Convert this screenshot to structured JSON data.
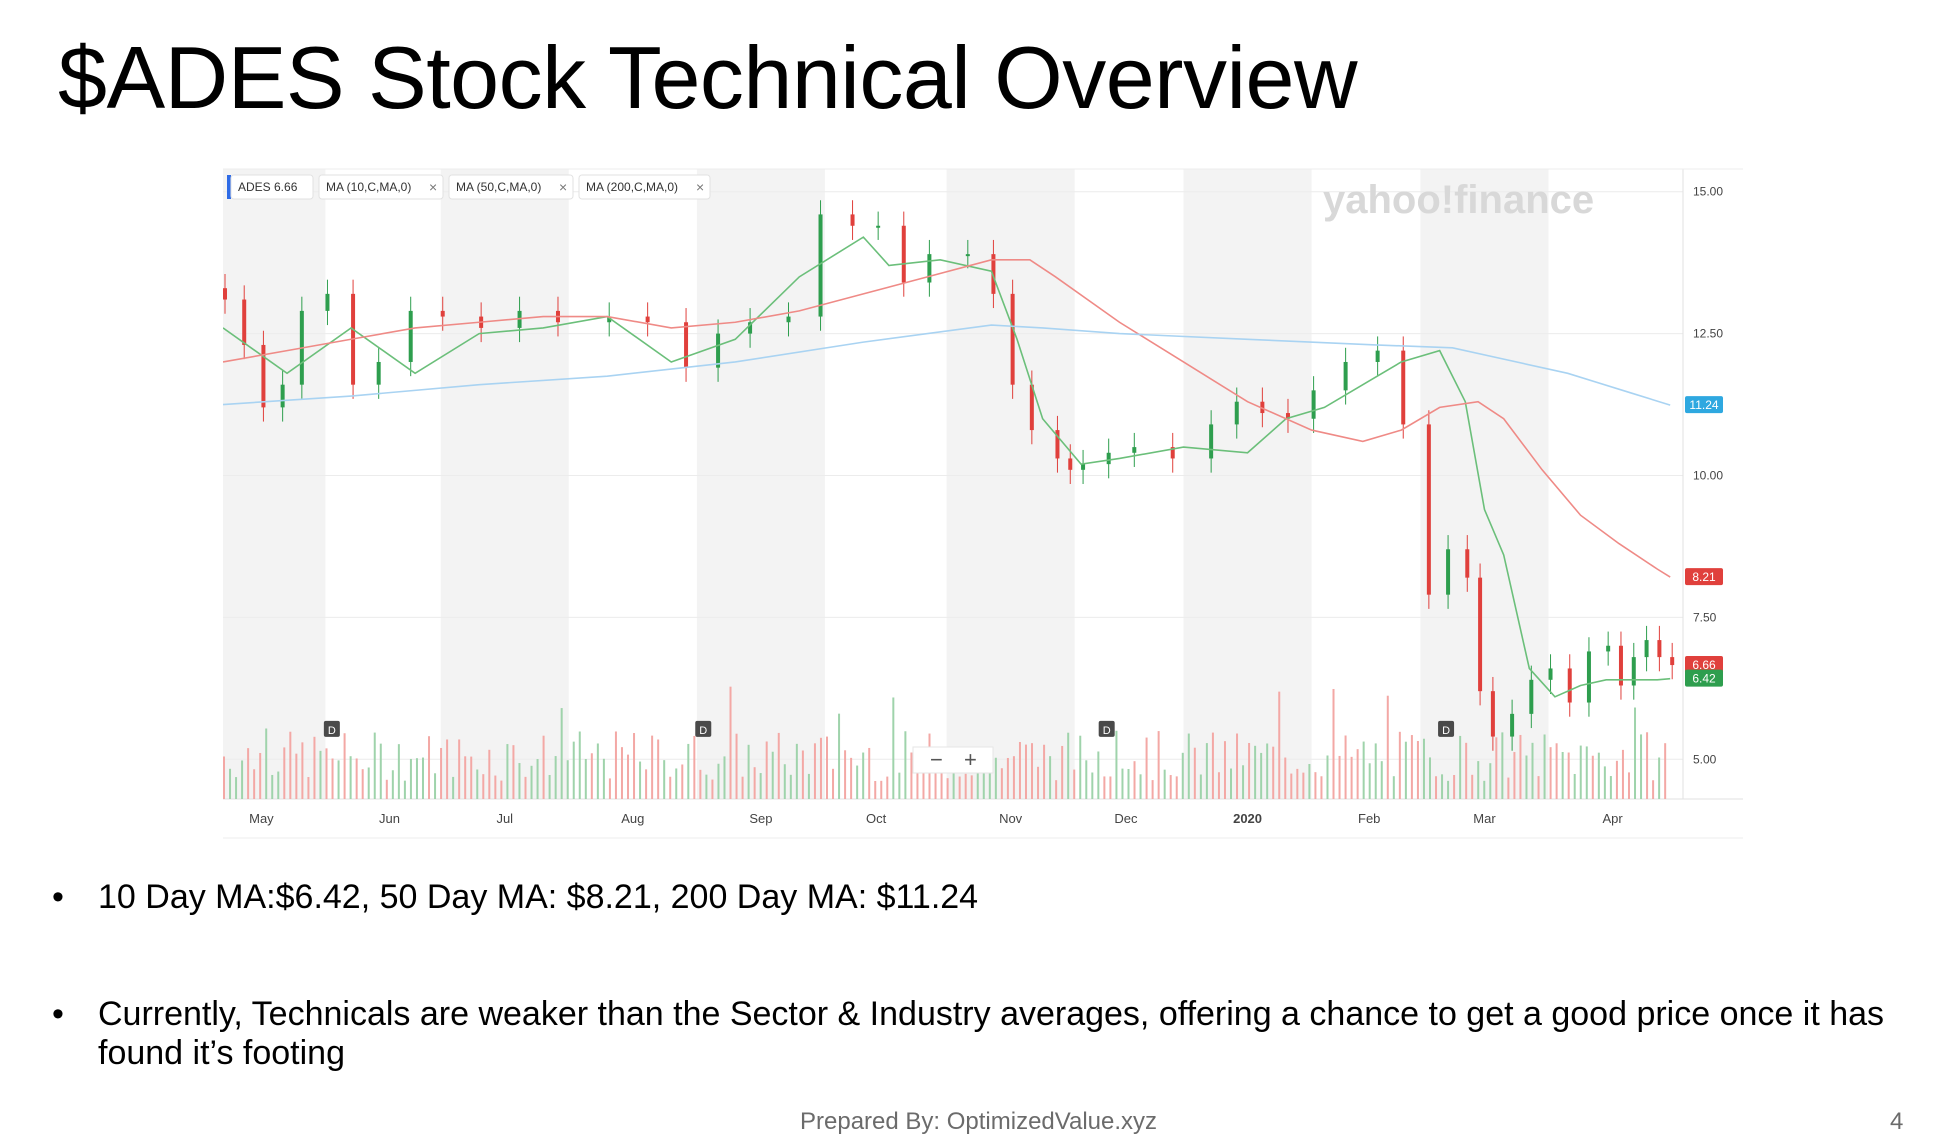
{
  "slide": {
    "title": "$ADES Stock Technical Overview",
    "bullets": [
      "10 Day MA:$6.42, 50 Day MA: $8.21, 200 Day MA: $11.24",
      "Currently, Technicals are weaker than the Sector & Industry averages, offering a chance to get a good price once it has found it’s footing"
    ],
    "footer": "Prepared By: OptimizedValue.xyz",
    "page_number": "4"
  },
  "chart_data": {
    "type": "line",
    "watermark": "yahoo!finance",
    "legend": [
      {
        "label": "ADES",
        "value": "6.66"
      },
      {
        "label": "MA (10,C,MA,0)"
      },
      {
        "label": "MA (50,C,MA,0)"
      },
      {
        "label": "MA (200,C,MA,0)"
      }
    ],
    "ylim": [
      4.3,
      15.4
    ],
    "y_ticks": [
      "15.00",
      "12.50",
      "10.00",
      "7.50",
      "5.00"
    ],
    "x_months": [
      "May",
      "Jun",
      "Jul",
      "Aug",
      "Sep",
      "Oct",
      "Nov",
      "Dec",
      "2020",
      "Feb",
      "Mar",
      "Apr"
    ],
    "month_positions": [
      0.3,
      1.3,
      2.2,
      3.2,
      4.2,
      5.1,
      6.15,
      7.05,
      8.0,
      8.95,
      9.85,
      10.85
    ],
    "shaded_months": [
      0,
      2,
      4,
      6,
      8,
      10
    ],
    "dividend_markers": [
      0.85,
      3.75,
      6.9,
      9.55
    ],
    "price_series": {
      "name": "ADES",
      "x": [
        0.0,
        0.15,
        0.3,
        0.45,
        0.6,
        0.8,
        1.0,
        1.2,
        1.45,
        1.7,
        2.0,
        2.3,
        2.6,
        3.0,
        3.3,
        3.6,
        3.85,
        4.1,
        4.4,
        4.65,
        4.9,
        5.1,
        5.3,
        5.5,
        5.8,
        6.0,
        6.15,
        6.3,
        6.5,
        6.6,
        6.7,
        6.9,
        7.1,
        7.4,
        7.7,
        7.9,
        8.1,
        8.3,
        8.5,
        8.75,
        9.0,
        9.2,
        9.4,
        9.55,
        9.7,
        9.8,
        9.9,
        10.05,
        10.2,
        10.35,
        10.5,
        10.65,
        10.8,
        10.9,
        11.0,
        11.1,
        11.2,
        11.3
      ],
      "close": [
        13.1,
        12.3,
        11.2,
        11.6,
        12.9,
        13.2,
        11.6,
        12.0,
        12.9,
        12.8,
        12.6,
        12.9,
        12.7,
        12.8,
        12.7,
        11.9,
        12.5,
        12.7,
        12.8,
        14.6,
        14.4,
        14.4,
        13.4,
        13.9,
        13.9,
        13.2,
        11.6,
        10.8,
        10.3,
        10.1,
        10.2,
        10.4,
        10.5,
        10.3,
        10.9,
        11.3,
        11.1,
        11.0,
        11.5,
        12.0,
        12.2,
        10.9,
        7.9,
        8.7,
        8.2,
        6.2,
        5.4,
        5.8,
        6.4,
        6.6,
        6.0,
        6.9,
        7.0,
        6.3,
        6.8,
        7.1,
        6.8,
        6.66
      ]
    },
    "series": [
      {
        "name": "MA (10,C,MA,0)",
        "x": [
          0,
          0.5,
          1.0,
          1.5,
          2.0,
          2.5,
          3.0,
          3.5,
          4.0,
          4.5,
          5.0,
          5.2,
          5.6,
          6.0,
          6.2,
          6.4,
          6.7,
          7.0,
          7.5,
          8.0,
          8.3,
          8.6,
          8.9,
          9.2,
          9.5,
          9.7,
          9.85,
          10.0,
          10.2,
          10.4,
          10.6,
          10.8,
          11.0,
          11.2,
          11.3
        ],
        "values": [
          12.6,
          11.8,
          12.6,
          11.8,
          12.5,
          12.6,
          12.8,
          12.0,
          12.4,
          13.5,
          14.2,
          13.7,
          13.8,
          13.6,
          12.4,
          11.0,
          10.2,
          10.3,
          10.5,
          10.4,
          11.0,
          11.2,
          11.6,
          12.0,
          12.2,
          11.3,
          9.4,
          8.6,
          6.6,
          6.1,
          6.3,
          6.4,
          6.4,
          6.4,
          6.42
        ]
      },
      {
        "name": "MA (50,C,MA,0)",
        "x": [
          0,
          0.5,
          1.0,
          1.5,
          2.0,
          2.5,
          3.0,
          3.5,
          4.0,
          4.5,
          5.0,
          5.5,
          6.0,
          6.3,
          6.5,
          7.0,
          7.5,
          8.0,
          8.5,
          8.9,
          9.2,
          9.5,
          9.8,
          10.0,
          10.3,
          10.6,
          10.9,
          11.2,
          11.3
        ],
        "values": [
          12.0,
          12.2,
          12.4,
          12.6,
          12.7,
          12.8,
          12.8,
          12.6,
          12.7,
          12.9,
          13.2,
          13.5,
          13.8,
          13.8,
          13.5,
          12.7,
          12.0,
          11.3,
          10.8,
          10.6,
          10.8,
          11.2,
          11.3,
          11.0,
          10.1,
          9.3,
          8.8,
          8.35,
          8.21
        ]
      },
      {
        "name": "MA (200,C,MA,0)",
        "x": [
          0,
          1.0,
          2.0,
          3.0,
          4.0,
          5.0,
          6.0,
          6.4,
          7.0,
          8.0,
          9.0,
          9.6,
          10.0,
          10.5,
          11.0,
          11.3
        ],
        "values": [
          11.25,
          11.4,
          11.6,
          11.75,
          12.0,
          12.35,
          12.65,
          12.6,
          12.5,
          12.4,
          12.3,
          12.25,
          12.05,
          11.8,
          11.45,
          11.24
        ]
      }
    ],
    "price_labels": [
      {
        "text": "11.24",
        "value": 11.24,
        "color": "#2ea8e0"
      },
      {
        "text": "8.21",
        "value": 8.21,
        "color": "#e0403c"
      },
      {
        "text": "6.66",
        "value": 6.66,
        "color": "#e0403c"
      },
      {
        "text": "6.42",
        "value": 6.42,
        "color": "#2e9e4e"
      }
    ],
    "colors": {
      "ma10": "#6bbf7a",
      "ma50": "#ef8a86",
      "ma200": "#a9d3f2",
      "up": "#2e9e4e",
      "down": "#e0403c"
    }
  }
}
